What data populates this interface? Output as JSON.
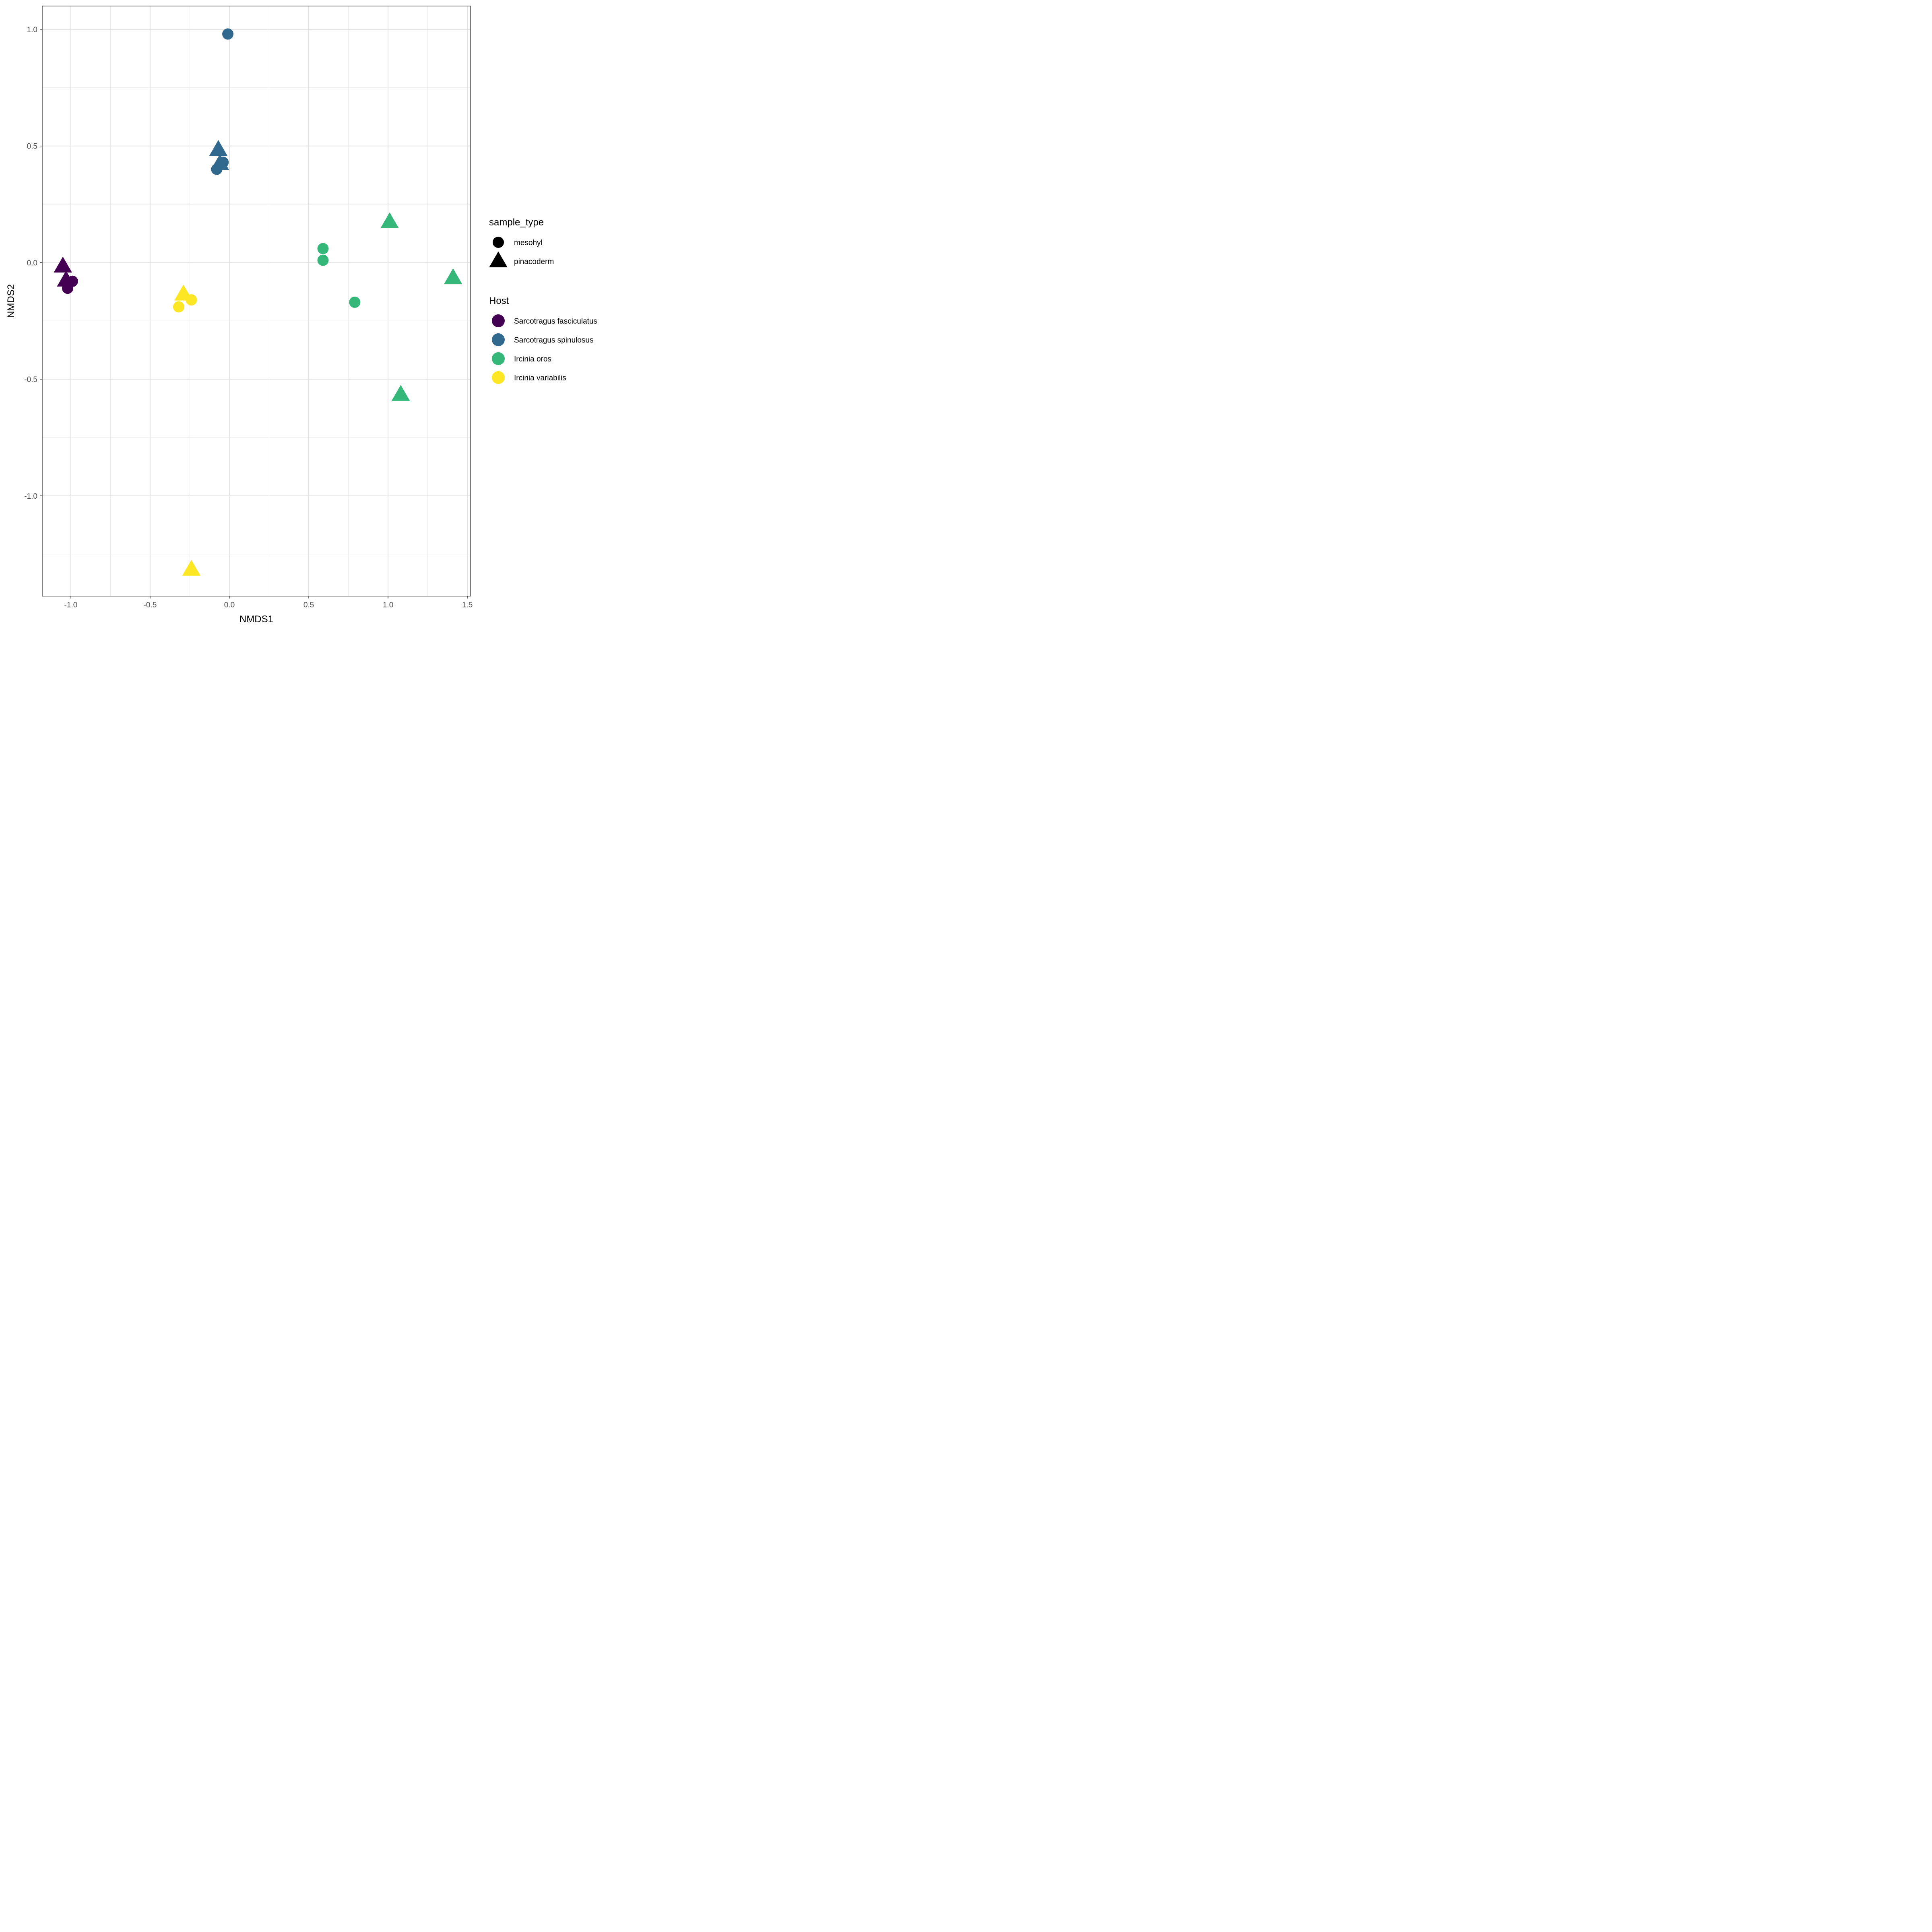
{
  "chart_data": {
    "type": "scatter",
    "title": "",
    "xlabel": "NMDS1",
    "ylabel": "NMDS2",
    "xlim": [
      -1.18,
      1.52
    ],
    "ylim": [
      -1.43,
      1.1
    ],
    "x_ticks": [
      -1.0,
      -0.5,
      0.0,
      0.5,
      1.0,
      1.5
    ],
    "x_tick_labels": [
      "-1.0",
      "-0.5",
      "0.0",
      "0.5",
      "1.0",
      "1.5"
    ],
    "y_ticks": [
      -1.0,
      -0.5,
      0.0,
      0.5,
      1.0
    ],
    "y_tick_labels": [
      "-1.0",
      "-0.5",
      "0.0",
      "0.5",
      "1.0"
    ],
    "grid": true,
    "legend_placement": "right",
    "legends": [
      {
        "title": "sample_type",
        "entries": [
          {
            "label": "mesohyl",
            "shape": "circle"
          },
          {
            "label": "pinacoderm",
            "shape": "triangle"
          }
        ]
      },
      {
        "title": "Host",
        "entries": [
          {
            "label": "Sarcotragus fasciculatus",
            "color": "#440154"
          },
          {
            "label": "Sarcotragus spinulosus",
            "color": "#31688E"
          },
          {
            "label": "Ircinia oros",
            "color": "#35B779"
          },
          {
            "label": "Ircinia variabilis",
            "color": "#FDE725"
          }
        ]
      }
    ],
    "series": [
      {
        "name": "Sarcotragus fasciculatus",
        "color": "#440154",
        "points": [
          {
            "x": -1.05,
            "y": -0.02,
            "sample_type": "pinacoderm"
          },
          {
            "x": -1.03,
            "y": -0.08,
            "sample_type": "pinacoderm"
          },
          {
            "x": -0.99,
            "y": -0.08,
            "sample_type": "mesohyl"
          },
          {
            "x": -1.02,
            "y": -0.11,
            "sample_type": "mesohyl"
          }
        ]
      },
      {
        "name": "Sarcotragus spinulosus",
        "color": "#31688E",
        "points": [
          {
            "x": -0.01,
            "y": 0.98,
            "sample_type": "mesohyl"
          },
          {
            "x": -0.07,
            "y": 0.48,
            "sample_type": "pinacoderm"
          },
          {
            "x": -0.06,
            "y": 0.42,
            "sample_type": "pinacoderm"
          },
          {
            "x": -0.04,
            "y": 0.43,
            "sample_type": "mesohyl"
          },
          {
            "x": -0.08,
            "y": 0.4,
            "sample_type": "mesohyl"
          }
        ]
      },
      {
        "name": "Ircinia oros",
        "color": "#35B779",
        "points": [
          {
            "x": 1.01,
            "y": 0.17,
            "sample_type": "pinacoderm"
          },
          {
            "x": 0.59,
            "y": 0.06,
            "sample_type": "mesohyl"
          },
          {
            "x": 0.59,
            "y": 0.01,
            "sample_type": "mesohyl"
          },
          {
            "x": 1.41,
            "y": -0.07,
            "sample_type": "pinacoderm"
          },
          {
            "x": 0.79,
            "y": -0.17,
            "sample_type": "mesohyl"
          },
          {
            "x": 1.08,
            "y": -0.57,
            "sample_type": "pinacoderm"
          }
        ]
      },
      {
        "name": "Ircinia variabilis",
        "color": "#FDE725",
        "points": [
          {
            "x": -0.29,
            "y": -0.14,
            "sample_type": "pinacoderm"
          },
          {
            "x": -0.24,
            "y": -0.16,
            "sample_type": "mesohyl"
          },
          {
            "x": -0.32,
            "y": -0.19,
            "sample_type": "mesohyl"
          },
          {
            "x": -0.24,
            "y": -1.32,
            "sample_type": "pinacoderm"
          }
        ]
      }
    ]
  }
}
